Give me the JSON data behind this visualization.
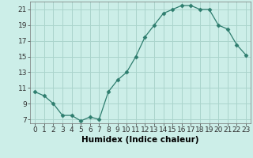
{
  "x": [
    0,
    1,
    2,
    3,
    4,
    5,
    6,
    7,
    8,
    9,
    10,
    11,
    12,
    13,
    14,
    15,
    16,
    17,
    18,
    19,
    20,
    21,
    22,
    23
  ],
  "y": [
    10.5,
    10.0,
    9.0,
    7.5,
    7.5,
    6.8,
    7.3,
    7.0,
    10.5,
    12.0,
    13.0,
    15.0,
    17.5,
    19.0,
    20.5,
    21.0,
    21.5,
    21.5,
    21.0,
    21.0,
    19.0,
    18.5,
    16.5,
    15.2
  ],
  "line_color": "#2e7d6e",
  "marker": "D",
  "marker_size": 2.5,
  "bg_color": "#cceee8",
  "grid_color": "#aad4cc",
  "xlabel": "Humidex (Indice chaleur)",
  "xlim": [
    -0.5,
    23.5
  ],
  "ylim": [
    6.5,
    22
  ],
  "yticks": [
    7,
    9,
    11,
    13,
    15,
    17,
    19,
    21
  ],
  "xtick_labels": [
    "0",
    "1",
    "2",
    "3",
    "4",
    "5",
    "6",
    "7",
    "8",
    "9",
    "10",
    "11",
    "12",
    "13",
    "14",
    "15",
    "16",
    "17",
    "18",
    "19",
    "20",
    "21",
    "22",
    "23"
  ],
  "xlabel_fontsize": 7.5,
  "tick_fontsize": 6.5
}
